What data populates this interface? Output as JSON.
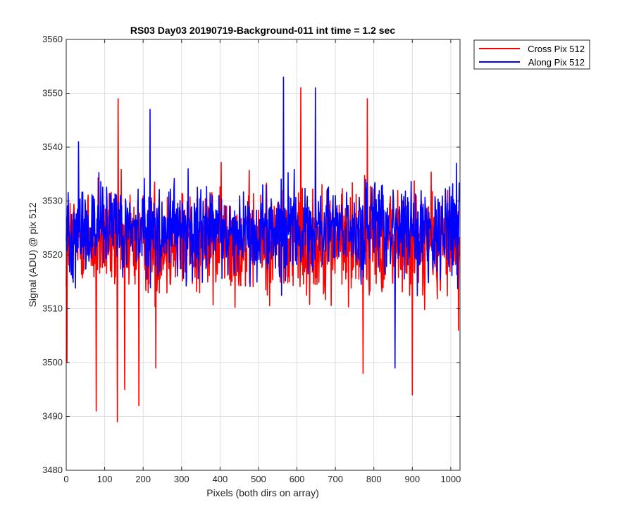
{
  "chart_data": {
    "type": "line",
    "title": "RS03 Day03 20190719-Background-011 int time = 1.2 sec",
    "xlabel": "Pixels (both dirs on array)",
    "ylabel": "Signal (ADU) @ pix 512",
    "xlim": [
      0,
      1024
    ],
    "ylim": [
      3480,
      3560
    ],
    "xticks": [
      0,
      100,
      200,
      300,
      400,
      500,
      600,
      700,
      800,
      900,
      1000
    ],
    "yticks": [
      3480,
      3490,
      3500,
      3510,
      3520,
      3530,
      3540,
      3550,
      3560
    ],
    "grid": true,
    "legend_position": "outside-top-right",
    "series": [
      {
        "name": "Cross Pix 512",
        "color": "#ff0000",
        "mean": 3522,
        "noise_range": [
          3508,
          3537
        ],
        "samples": 1024,
        "notable_points": [
          [
            2,
            3500
          ],
          [
            78,
            3491
          ],
          [
            133,
            3489
          ],
          [
            135,
            3549
          ],
          [
            152,
            3495
          ],
          [
            189,
            3492
          ],
          [
            233,
            3499
          ],
          [
            610,
            3551
          ],
          [
            772,
            3498
          ],
          [
            783,
            3549
          ],
          [
            900,
            3494
          ],
          [
            1020,
            3506
          ]
        ]
      },
      {
        "name": "Along Pix 512",
        "color": "#0000ff",
        "mean": 3524,
        "noise_range": [
          3512,
          3537
        ],
        "samples": 1024,
        "notable_points": [
          [
            32,
            3541
          ],
          [
            218,
            3547
          ],
          [
            565,
            3553
          ],
          [
            648,
            3551
          ],
          [
            855,
            3499
          ],
          [
            1015,
            3537
          ]
        ]
      }
    ]
  }
}
